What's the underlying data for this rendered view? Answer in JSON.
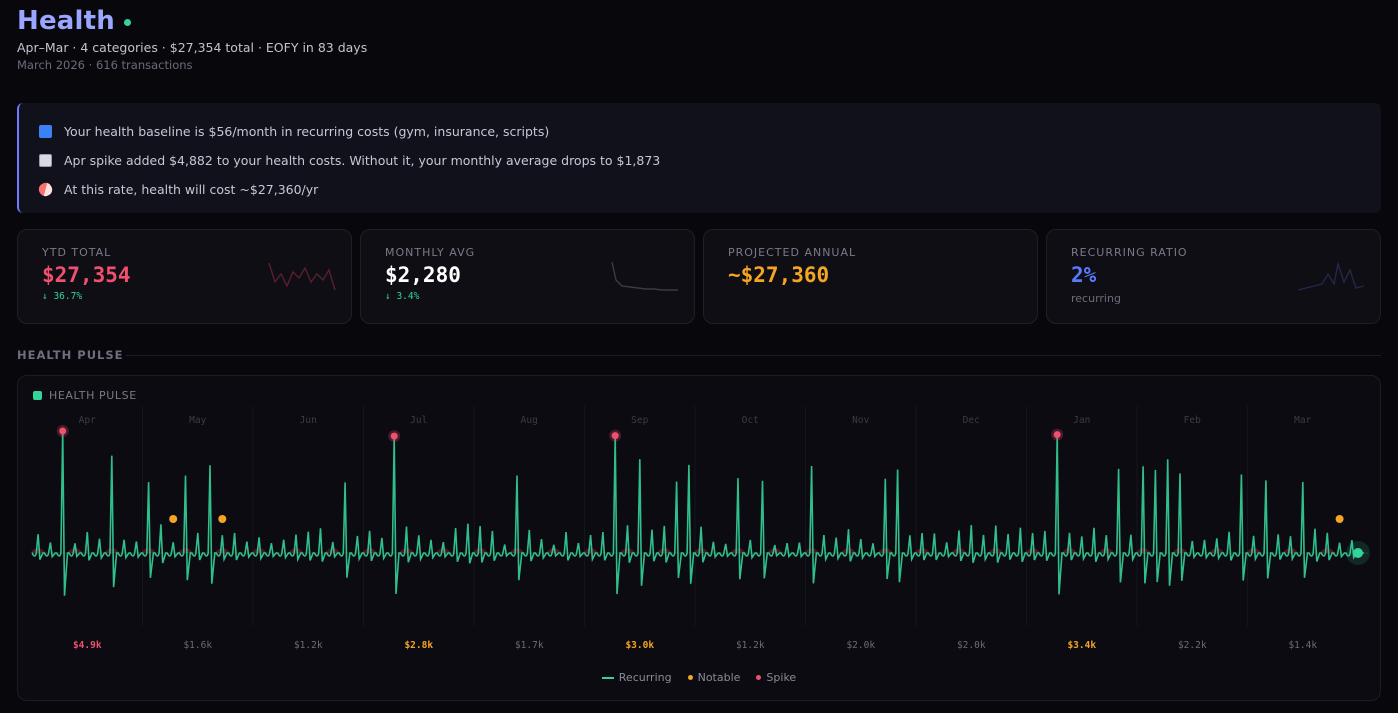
{
  "header": {
    "title": "Health",
    "subtitle": "Apr–Mar · 4 categories · $27,354 total · EOFY in 83 days",
    "meta": "March 2026 · 616 transactions"
  },
  "insights": [
    {
      "icon": "refresh-icon",
      "color": "#3b82f6",
      "text": "Your health baseline is $56/month in recurring costs (gym, insurance, scripts)"
    },
    {
      "icon": "chart-up-icon",
      "color": "#c9c9d6",
      "text": "Apr spike added $4,882 to your health costs. Without it, your monthly average drops to $1,873"
    },
    {
      "icon": "pill-icon",
      "color": "#f87171",
      "text": "At this rate, health will cost ~$27,360/yr"
    }
  ],
  "cards": [
    {
      "label": "YTD TOTAL",
      "value": "$27,354",
      "delta": "↓ 36.7%",
      "sub": "",
      "color": "#f0506e"
    },
    {
      "label": "MONTHLY AVG",
      "value": "$2,280",
      "delta": "↓ 3.4%",
      "sub": "",
      "color": "#ffffff"
    },
    {
      "label": "PROJECTED ANNUAL",
      "value": "~$27,360",
      "delta": "",
      "sub": "",
      "color": "#f5a524"
    },
    {
      "label": "RECURRING RATIO",
      "value": "2%",
      "delta": "",
      "sub": "recurring",
      "color": "#5b7bff"
    }
  ],
  "section": {
    "title": "HEALTH PULSE"
  },
  "chart_data": {
    "type": "line",
    "title": "HEALTH PULSE",
    "months": [
      "Apr",
      "May",
      "Jun",
      "Jul",
      "Aug",
      "Sep",
      "Oct",
      "Nov",
      "Dec",
      "Jan",
      "Feb",
      "Mar"
    ],
    "totals": [
      "$4.9k",
      "$1.6k",
      "$1.2k",
      "$2.8k",
      "$1.7k",
      "$3.0k",
      "$1.2k",
      "$2.0k",
      "$2.0k",
      "$3.4k",
      "$2.2k",
      "$1.4k"
    ],
    "total_values": [
      4900,
      1600,
      1200,
      2800,
      1700,
      3000,
      1200,
      2000,
      2000,
      3400,
      2200,
      1400
    ],
    "highlight_months": [
      "Apr",
      "Jul",
      "Sep",
      "Jan"
    ],
    "legend": [
      "Recurring",
      "Notable",
      "Spike"
    ],
    "colors": {
      "recurring": "#34d399",
      "notable": "#f5a524",
      "spike": "#f0506e",
      "highlight": "#f5a524",
      "warn": "#f0506e"
    }
  }
}
